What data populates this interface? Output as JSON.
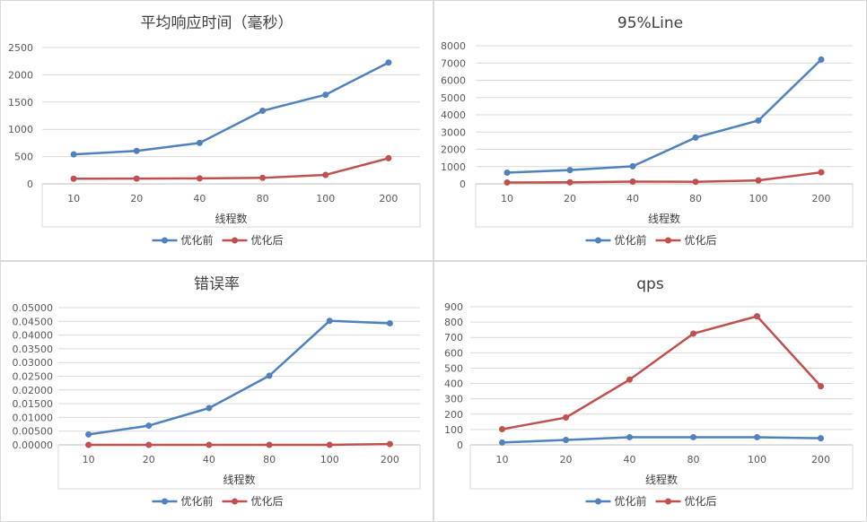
{
  "chart_data": [
    {
      "type": "line",
      "title": "平均响应时间（毫秒）",
      "xlabel": "线程数",
      "ylabel": "",
      "categories": [
        "10",
        "20",
        "40",
        "80",
        "100",
        "200"
      ],
      "ylim": [
        0,
        2500
      ],
      "yticks": [
        "0",
        "500",
        "1000",
        "1500",
        "2000",
        "2500"
      ],
      "grid": true,
      "legend": "bottom",
      "series": [
        {
          "name": "优化前",
          "color": "#4f81bd",
          "values": [
            540,
            605,
            750,
            1340,
            1635,
            2225
          ]
        },
        {
          "name": "优化后",
          "color": "#c0504d",
          "values": [
            95,
            97,
            100,
            110,
            165,
            470
          ]
        }
      ]
    },
    {
      "type": "line",
      "title": "95%Line",
      "xlabel": "线程数",
      "ylabel": "",
      "categories": [
        "10",
        "20",
        "40",
        "80",
        "100",
        "200"
      ],
      "ylim": [
        0,
        8000
      ],
      "yticks": [
        "0",
        "1000",
        "2000",
        "3000",
        "4000",
        "5000",
        "6000",
        "7000",
        "8000"
      ],
      "grid": true,
      "legend": "bottom",
      "series": [
        {
          "name": "优化前",
          "color": "#4f81bd",
          "values": [
            650,
            800,
            1020,
            2680,
            3670,
            7200
          ]
        },
        {
          "name": "优化后",
          "color": "#c0504d",
          "values": [
            80,
            90,
            130,
            120,
            200,
            670
          ]
        }
      ]
    },
    {
      "type": "line",
      "title": "错误率",
      "xlabel": "线程数",
      "ylabel": "",
      "categories": [
        "10",
        "20",
        "40",
        "80",
        "100",
        "200"
      ],
      "ylim": [
        0,
        0.05
      ],
      "yticks": [
        "0.00000",
        "0.00500",
        "0.01000",
        "0.01500",
        "0.02000",
        "0.02500",
        "0.03000",
        "0.03500",
        "0.04000",
        "0.04500",
        "0.05000"
      ],
      "grid": true,
      "legend": "bottom",
      "series": [
        {
          "name": "优化前",
          "color": "#4f81bd",
          "values": [
            0.0038,
            0.007,
            0.0134,
            0.0252,
            0.0452,
            0.0443
          ]
        },
        {
          "name": "优化后",
          "color": "#c0504d",
          "values": [
            0.0,
            0.0,
            0.0,
            0.0,
            0.0,
            0.0003
          ]
        }
      ]
    },
    {
      "type": "line",
      "title": "qps",
      "xlabel": "线程数",
      "ylabel": "",
      "categories": [
        "10",
        "20",
        "40",
        "80",
        "100",
        "200"
      ],
      "ylim": [
        0,
        900
      ],
      "yticks": [
        "0",
        "100",
        "200",
        "300",
        "400",
        "500",
        "600",
        "700",
        "800",
        "900"
      ],
      "grid": true,
      "legend": "bottom",
      "series": [
        {
          "name": "优化前",
          "color": "#4f81bd",
          "values": [
            15,
            32,
            50,
            50,
            50,
            43
          ]
        },
        {
          "name": "优化后",
          "color": "#c0504d",
          "values": [
            102,
            178,
            425,
            725,
            838,
            382
          ]
        }
      ]
    }
  ]
}
